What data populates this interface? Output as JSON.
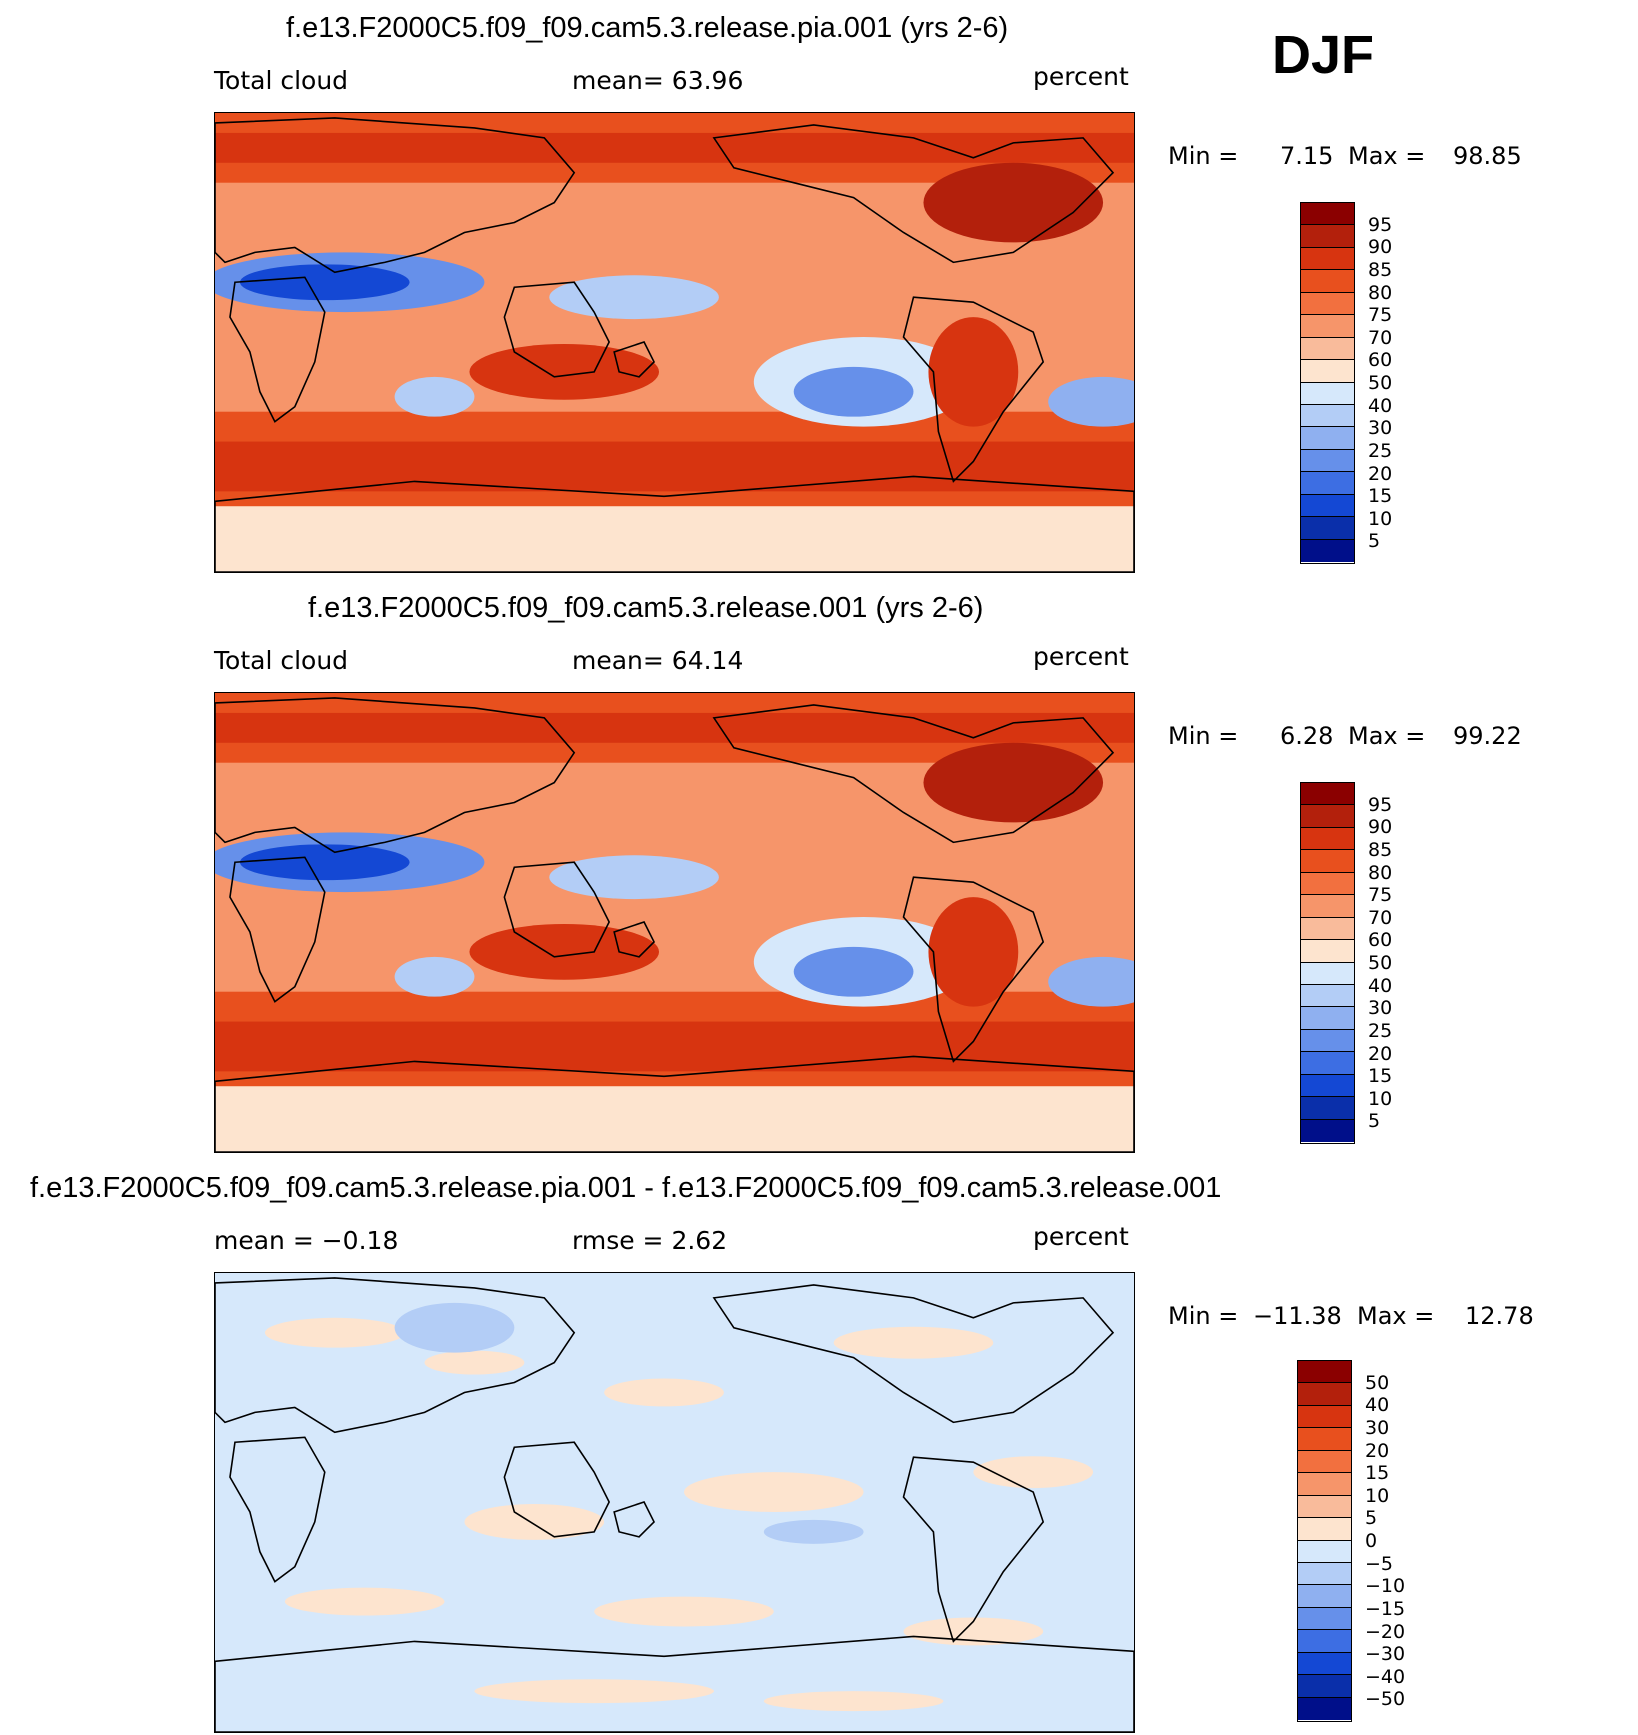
{
  "season": "DJF",
  "panels": [
    {
      "title": "f.e13.F2000C5.f09_f09.cam5.3.release.pia.001 (yrs 2-6)",
      "left_label": "Total cloud",
      "center_label": "mean=   63.96",
      "units": "percent",
      "min_label": "Min =",
      "min_value": "7.15",
      "max_label": "Max =",
      "max_value": "98.85",
      "kind": "abs"
    },
    {
      "title": "f.e13.F2000C5.f09_f09.cam5.3.release.001 (yrs 2-6)",
      "left_label": "Total cloud",
      "center_label": "mean=   64.14",
      "units": "percent",
      "min_label": "Min =",
      "min_value": "6.28",
      "max_label": "Max =",
      "max_value": "99.22",
      "kind": "abs"
    },
    {
      "title": "f.e13.F2000C5.f09_f09.cam5.3.release.pia.001 - f.e13.F2000C5.f09_f09.cam5.3.release.001",
      "left_label": "mean =   −0.18",
      "center_label": "rmse =    2.62",
      "units": "percent",
      "min_label": "Min =",
      "min_value": "−11.38",
      "max_label": "Max =",
      "max_value": "12.78",
      "kind": "diff"
    }
  ],
  "colorbars": {
    "abs": {
      "labels": [
        "95",
        "90",
        "85",
        "80",
        "75",
        "70",
        "60",
        "50",
        "40",
        "30",
        "25",
        "20",
        "15",
        "10",
        "5"
      ],
      "colors": [
        "#8b0000",
        "#b3200c",
        "#d73410",
        "#e8501e",
        "#f2703f",
        "#f6956a",
        "#f9bb9b",
        "#fde4cf",
        "#d6e8fb",
        "#b3cdf6",
        "#8fb0f0",
        "#6690ea",
        "#3d6ee3",
        "#1448d4",
        "#0a2faa",
        "#000f8a"
      ]
    },
    "diff": {
      "labels": [
        "50",
        "40",
        "30",
        "20",
        "15",
        "10",
        "5",
        "0",
        "−5",
        "−10",
        "−15",
        "−20",
        "−30",
        "−40",
        "−50"
      ],
      "colors": [
        "#8b0000",
        "#b3200c",
        "#d73410",
        "#e8501e",
        "#f2703f",
        "#f6956a",
        "#f9bb9b",
        "#fde4cf",
        "#d6e8fb",
        "#b3cdf6",
        "#8fb0f0",
        "#6690ea",
        "#3d6ee3",
        "#1448d4",
        "#0a2faa",
        "#000f8a"
      ]
    }
  },
  "map_colors": {
    "land_outline": "#000000",
    "abs_background": "#f6956a",
    "diff_background": "#d6e8fb"
  }
}
